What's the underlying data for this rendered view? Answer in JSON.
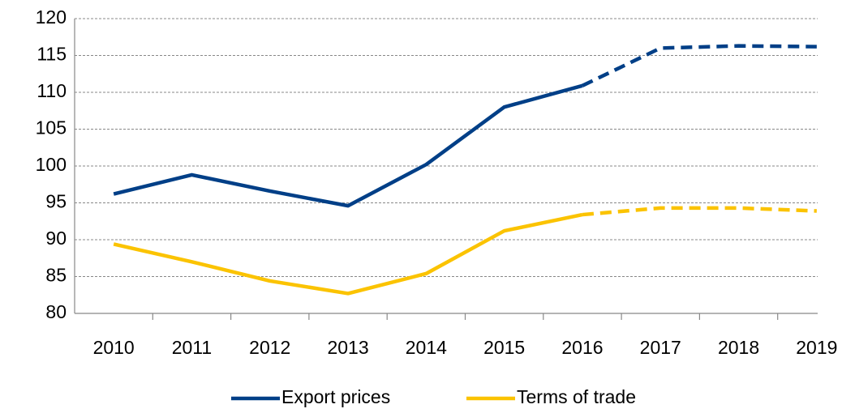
{
  "chart_data": {
    "type": "line",
    "categories": [
      "2010",
      "2011",
      "2012",
      "2013",
      "2014",
      "2015",
      "2016",
      "2017",
      "2018",
      "2019"
    ],
    "series": [
      {
        "name": "Export prices",
        "color": "#003f87",
        "values": [
          96.2,
          98.8,
          96.6,
          94.6,
          100.2,
          108,
          110.9,
          116,
          116.3,
          116.2
        ]
      },
      {
        "name": "Terms of trade",
        "color": "#fbc300",
        "values": [
          89.4,
          87,
          84.4,
          82.7,
          85.4,
          91.2,
          93.4,
          94.3,
          94.3,
          93.9
        ]
      }
    ],
    "dashed_from": "2016",
    "ylim": [
      80,
      120
    ],
    "yticks": [
      80,
      85,
      90,
      95,
      100,
      105,
      110,
      115,
      120
    ],
    "grid": true,
    "legend": "bottom"
  }
}
